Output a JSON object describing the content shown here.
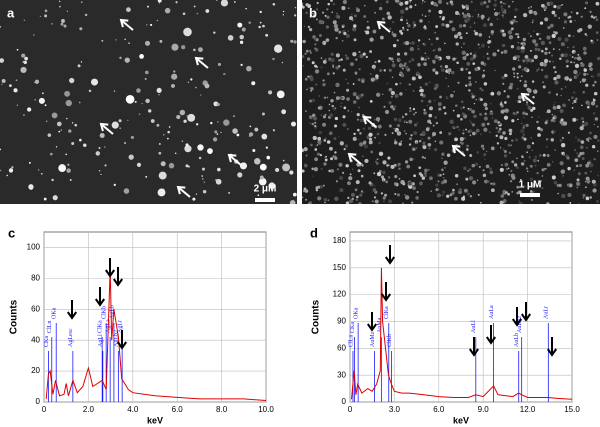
{
  "panels": [
    {
      "label": "a",
      "scale_bar": "2 μM"
    },
    {
      "label": "b",
      "scale_bar": "1 μM"
    }
  ],
  "chart_data": [
    {
      "type": "line",
      "panel_label": "c",
      "xlabel": "keV",
      "ylabel": "Counts",
      "color": "#e00000",
      "grid": true,
      "x": [
        0.1,
        0.2,
        0.28,
        0.4,
        0.52,
        0.7,
        0.9,
        1.0,
        1.1,
        1.3,
        1.5,
        1.75,
        2.0,
        2.2,
        2.62,
        2.8,
        2.98,
        3.05,
        3.15,
        3.35,
        3.5,
        3.8,
        4.0,
        4.5,
        5.0,
        6.0,
        7.0,
        8.0,
        9.0,
        10.0
      ],
      "values": [
        2,
        18,
        20,
        5,
        14,
        4,
        5,
        12,
        4,
        14,
        6,
        10,
        22,
        10,
        14,
        8,
        86,
        40,
        60,
        42,
        15,
        8,
        6,
        5,
        4,
        3,
        2,
        2,
        2,
        1
      ],
      "xlim": [
        0,
        10
      ],
      "ylim": [
        0,
        110
      ],
      "xticks": [
        0,
        {
          "value": 2,
          "label": "2.0"
        },
        {
          "value": 4,
          "label": "4.0"
        },
        {
          "value": 6,
          "label": "6.0"
        },
        {
          "value": 8,
          "label": "8.0"
        },
        {
          "value": 10,
          "label": "10.0"
        }
      ],
      "yticks": [
        0,
        20,
        40,
        60,
        80,
        100
      ],
      "annotation_color": "#1a1aff",
      "annotations": [
        {
          "text": "CKa",
          "x": 0.2
        },
        {
          "text": "ClLn",
          "x": 0.35
        },
        {
          "text": "OKa",
          "x": 0.55
        },
        {
          "text": "AgLesc",
          "x": 1.3
        },
        {
          "text": "ClKa",
          "x": 2.62
        },
        {
          "text": "ClKb",
          "x": 2.8
        },
        {
          "text": "AgLl",
          "x": 2.65
        },
        {
          "text": "AgLa",
          "x": 2.98
        },
        {
          "text": "AgLb",
          "x": 3.15
        },
        {
          "text": "AgLb2",
          "x": 3.35
        },
        {
          "text": "AgLr",
          "x": 3.52
        }
      ]
    },
    {
      "type": "line",
      "panel_label": "d",
      "xlabel": "keV",
      "ylabel": "Counts",
      "color": "#e00000",
      "grid": true,
      "x": [
        0.1,
        0.28,
        0.4,
        0.52,
        0.8,
        1.2,
        1.5,
        1.8,
        2.05,
        2.12,
        2.2,
        2.4,
        2.6,
        2.8,
        3.0,
        3.5,
        4.0,
        5.0,
        6.0,
        7.0,
        8.0,
        8.5,
        9.0,
        9.7,
        10.0,
        11.0,
        11.4,
        11.6,
        12.0,
        13.4,
        14.0,
        15.0
      ],
      "values": [
        3,
        35,
        8,
        20,
        10,
        15,
        12,
        20,
        35,
        150,
        90,
        60,
        30,
        20,
        12,
        10,
        10,
        8,
        6,
        5,
        5,
        8,
        6,
        18,
        8,
        6,
        10,
        8,
        5,
        5,
        4,
        3
      ],
      "xlim": [
        0,
        15
      ],
      "ylim": [
        0,
        190
      ],
      "xticks": [
        0,
        {
          "value": 3,
          "label": "3.0"
        },
        {
          "value": 6,
          "label": "6.0"
        },
        {
          "value": 9,
          "label": "9.0"
        },
        {
          "value": 12,
          "label": "12.0"
        },
        {
          "value": 15,
          "label": "15.0"
        }
      ],
      "yticks": [
        0,
        30,
        60,
        90,
        120,
        150,
        180
      ],
      "annotation_color": "#1a1aff",
      "annotations": [
        {
          "text": "ClLn",
          "x": 0.2
        },
        {
          "text": "CKa",
          "x": 0.3
        },
        {
          "text": "OKa",
          "x": 0.55
        },
        {
          "text": "AuMz",
          "x": 1.66
        },
        {
          "text": "AuMa",
          "x": 2.12
        },
        {
          "text": "ClKa",
          "x": 2.62
        },
        {
          "text": "ClKb",
          "x": 2.8
        },
        {
          "text": "AuLl",
          "x": 8.5
        },
        {
          "text": "AuLa",
          "x": 9.7
        },
        {
          "text": "AuLb",
          "x": 11.4
        },
        {
          "text": "AuLb2",
          "x": 11.6
        },
        {
          "text": "AuLr",
          "x": 13.4
        }
      ]
    }
  ]
}
